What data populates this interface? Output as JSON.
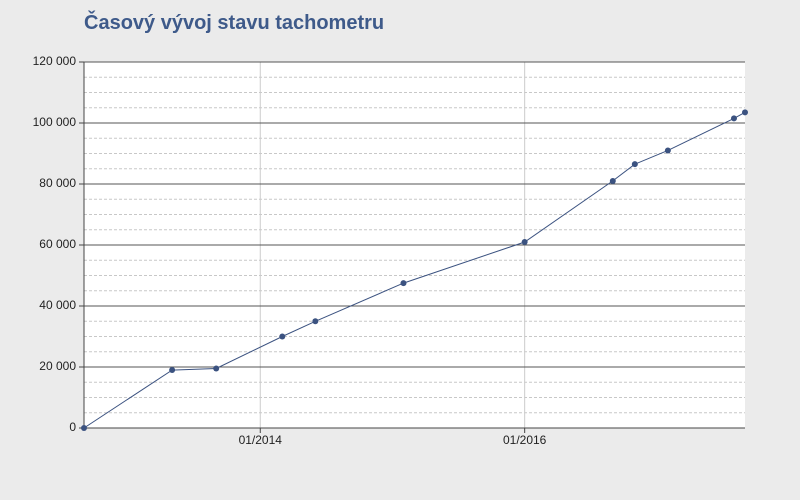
{
  "chart_data": {
    "type": "line",
    "title": "Časový vývoj stavu tachometru",
    "x": [
      "2012-09",
      "2013-05",
      "2013-09",
      "2014-03",
      "2014-06",
      "2015-02",
      "2016-01",
      "2016-09",
      "2016-11",
      "2017-02",
      "2017-08",
      "2017-09"
    ],
    "values": [
      0,
      19000,
      19500,
      30000,
      35000,
      47500,
      61000,
      81000,
      86500,
      91000,
      101500,
      103500
    ],
    "color": "#3b5280",
    "xlim": [
      "2012-09",
      "2017-09"
    ],
    "xticks": [
      {
        "value": "2014-01",
        "label": "01/2014"
      },
      {
        "value": "2016-01",
        "label": "01/2016"
      }
    ],
    "ylim": [
      0,
      120000
    ],
    "yticks": [
      {
        "value": 0,
        "label": "0"
      },
      {
        "value": 20000,
        "label": "20 000"
      },
      {
        "value": 40000,
        "label": "40 000"
      },
      {
        "value": 60000,
        "label": "60 000"
      },
      {
        "value": 80000,
        "label": "80 000"
      },
      {
        "value": 100000,
        "label": "100 000"
      },
      {
        "value": 120000,
        "label": "120 000"
      }
    ],
    "minor_yticks": [
      5000,
      10000,
      15000,
      25000,
      30000,
      35000,
      45000,
      50000,
      55000,
      65000,
      70000,
      75000,
      85000,
      90000,
      95000,
      105000,
      110000,
      115000
    ],
    "grid": true
  }
}
